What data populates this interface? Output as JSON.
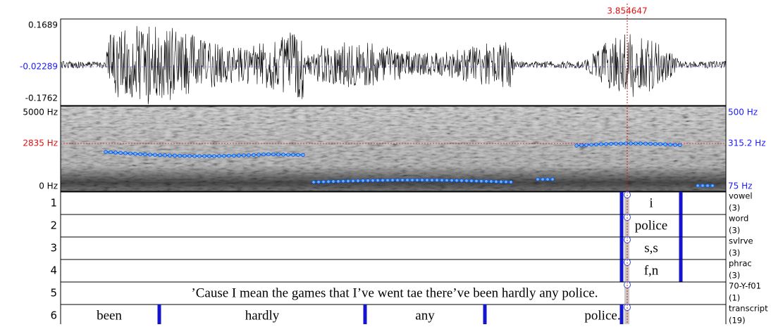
{
  "cursor_time": "3.854647",
  "waveform": {
    "max": "0.1689",
    "cursor_value": "-0.02289",
    "min": "-0.1762"
  },
  "spectrogram": {
    "left": {
      "top": "5000 Hz",
      "cursor": "2835 Hz",
      "bottom": "0 Hz"
    },
    "right": {
      "top": "500 Hz",
      "cursor": "315.2 Hz",
      "bottom": "75 Hz"
    }
  },
  "tiers": [
    {
      "number": "1",
      "name": "vowel",
      "count": "(3)",
      "intervals": [
        "i"
      ]
    },
    {
      "number": "2",
      "name": "word",
      "count": "(3)",
      "intervals": [
        "police"
      ]
    },
    {
      "number": "3",
      "name": "svlrve",
      "count": "(3)",
      "intervals": [
        "s,s"
      ]
    },
    {
      "number": "4",
      "name": "phrac",
      "count": "(3)",
      "intervals": [
        "f,n"
      ]
    },
    {
      "number": "5",
      "name": "70-Y-f01",
      "count": "(1)",
      "intervals": [
        "’Cause I mean the games that I’ve went tae there’ve been hardly any police."
      ]
    },
    {
      "number": "6",
      "name": "transcript",
      "count": "(19)",
      "intervals": [
        "been",
        "hardly",
        "any",
        "police."
      ]
    }
  ]
}
